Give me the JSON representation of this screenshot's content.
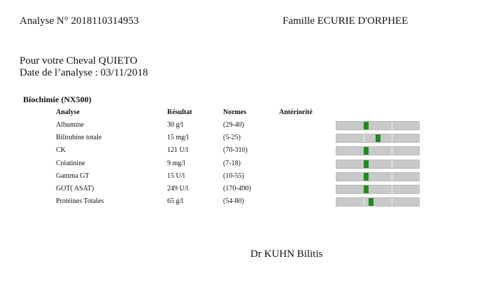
{
  "header": {
    "analysis_number": "Analyse N° 2018110314953",
    "family": "Famille ECURIE D'ORPHEE"
  },
  "patient": {
    "horse_line": "Pour votre Cheval QUIETO",
    "date_line": "Date de l’analyse  : 03/11/2018"
  },
  "section": {
    "title": "Biochimie (NX500)",
    "columns": {
      "analyse": "Analyse",
      "result": "Résultat",
      "normes": "Normes",
      "anterior": "Antériorité"
    }
  },
  "rows": [
    {
      "name": "Albumine",
      "result": "30 g/l",
      "norm": "(29-40)",
      "gauge_level": 0.36
    },
    {
      "name": "Bilirubine totale",
      "result": "15 mg/l",
      "norm": "(5-25)",
      "gauge_level": 0.5
    },
    {
      "name": "CK",
      "result": "121 U/l",
      "norm": "(70-310)",
      "gauge_level": 0.36
    },
    {
      "name": "Créatinine",
      "result": "9 mg/l",
      "norm": "(7-18)",
      "gauge_level": 0.36
    },
    {
      "name": "Gamma GT",
      "result": "15 U/l",
      "norm": "(10-55)",
      "gauge_level": 0.36
    },
    {
      "name": "GOT( ASAT)",
      "result": "249 U/l",
      "norm": "(170-490)",
      "gauge_level": 0.36
    },
    {
      "name": "Protéines Totales",
      "result": "65 g/l",
      "norm": "(54-80)",
      "gauge_level": 0.42
    }
  ],
  "footer": {
    "doctor": "Dr KUHN Bilitis"
  },
  "colors": {
    "gauge_track": "#c9c9c9",
    "gauge_marker": "#1f8a1f"
  }
}
